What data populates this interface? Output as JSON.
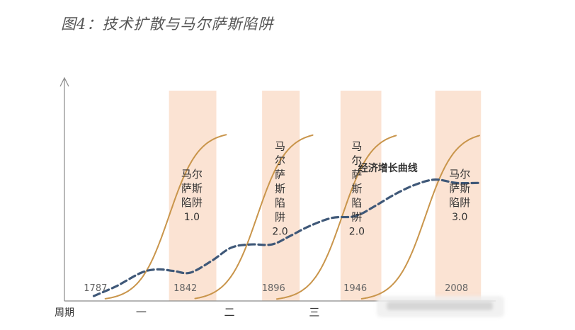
{
  "figure_title": "图4：技术扩散与马尔萨斯陷阱",
  "chart_data": {
    "type": "line",
    "title": "图4：技术扩散与马尔萨斯陷阱",
    "xlabel": "周期",
    "ylabel": "",
    "grid": false,
    "colors": {
      "band": "#fbe3d3",
      "diffusion_curve": "#c9954b",
      "growth_curve": "#3f5878",
      "axis": "#8a8a8a",
      "text": "#333333",
      "year_text": "#666666"
    },
    "year_ticks": [
      {
        "x": 1787,
        "label": "1787"
      },
      {
        "x": 1842,
        "label": "1842"
      },
      {
        "x": 1896,
        "label": "1896"
      },
      {
        "x": 1946,
        "label": "1946"
      },
      {
        "x": 2008,
        "label": "2008"
      }
    ],
    "period_labels": [
      {
        "x": 1815,
        "label": "一"
      },
      {
        "x": 1869,
        "label": "二"
      },
      {
        "x": 1921,
        "label": "三"
      }
    ],
    "bands": [
      {
        "x0": 1832,
        "x1": 1861,
        "label_lines": [
          "马尔",
          "萨斯",
          "陷阱",
          "1.0"
        ],
        "label_x": 1846,
        "label_y0": 0.74
      },
      {
        "x0": 1889,
        "x1": 1912,
        "label_lines": [
          "马",
          "尔",
          "萨",
          "斯",
          "陷",
          "阱",
          "2.0"
        ],
        "label_x": 1900,
        "label_y0": 0.91
      },
      {
        "x0": 1937,
        "x1": 1962,
        "label_lines": [
          "马",
          "尔",
          "萨",
          "斯",
          "陷",
          "阱",
          "2.0"
        ],
        "label_x": 1947,
        "label_y0": 0.91
      },
      {
        "x0": 1995,
        "x1": 2023,
        "label_lines": [
          "马尔",
          "萨斯",
          "陷阱",
          "3.0"
        ],
        "label_x": 2010,
        "label_y0": 0.74
      }
    ],
    "diffusion_curves": [
      {
        "mid": 1832,
        "start": 1793,
        "end": 1867,
        "ceiling": 1.02,
        "steep": 9
      },
      {
        "mid": 1886,
        "start": 1848,
        "end": 1920,
        "ceiling": 1.02,
        "steep": 9
      },
      {
        "mid": 1938,
        "start": 1898,
        "end": 1971,
        "ceiling": 1.02,
        "steep": 9
      },
      {
        "mid": 1989,
        "start": 1950,
        "end": 2022,
        "ceiling": 1.02,
        "steep": 9
      }
    ],
    "growth_series": {
      "name": "经济增长曲线",
      "name_x": 1966,
      "name_y": 0.78,
      "points": [
        [
          1786,
          0.03
        ],
        [
          1800,
          0.09
        ],
        [
          1815,
          0.17
        ],
        [
          1825,
          0.19
        ],
        [
          1835,
          0.18
        ],
        [
          1845,
          0.17
        ],
        [
          1858,
          0.24
        ],
        [
          1870,
          0.32
        ],
        [
          1882,
          0.34
        ],
        [
          1895,
          0.34
        ],
        [
          1906,
          0.39
        ],
        [
          1918,
          0.45
        ],
        [
          1932,
          0.5
        ],
        [
          1946,
          0.51
        ],
        [
          1958,
          0.57
        ],
        [
          1970,
          0.64
        ],
        [
          1983,
          0.7
        ],
        [
          1995,
          0.73
        ],
        [
          2008,
          0.71
        ],
        [
          2022,
          0.71
        ]
      ]
    },
    "xlim": [
      1768,
      2032
    ],
    "ylim": [
      0,
      1.32
    ]
  }
}
